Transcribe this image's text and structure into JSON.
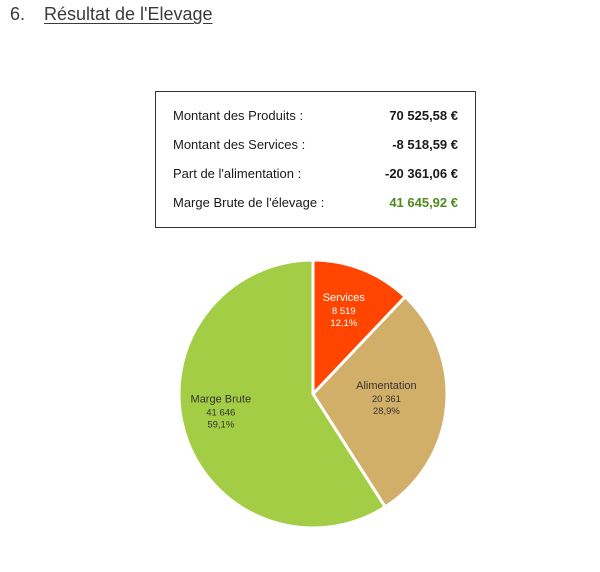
{
  "heading": {
    "number": "6.",
    "title": "Résultat de l'Elevage"
  },
  "summary": {
    "rows": [
      {
        "label": "Montant des Produits :",
        "value": "70 525,58 €"
      },
      {
        "label": "Montant des Services :",
        "value": "-8 518,59 €"
      },
      {
        "label": "Part de l'alimentation :",
        "value": "-20 361,06 €"
      },
      {
        "label": "Marge Brute de l'élevage :",
        "value": "41 645,92 €"
      }
    ],
    "accent_color": "#4f8a1e"
  },
  "chart_data": {
    "type": "pie",
    "title": "",
    "start_angle_deg": 0,
    "direction": "clockwise",
    "slices": [
      {
        "label": "Services",
        "value": 8519,
        "value_text": "8 519",
        "percent_text": "12,1%",
        "color": "#ff4500",
        "text_color": "#ffffff"
      },
      {
        "label": "Alimentation",
        "value": 20361,
        "value_text": "20 361",
        "percent_text": "28,9%",
        "color": "#d2af68",
        "text_color": "#333333"
      },
      {
        "label": "Marge Brute",
        "value": 41646,
        "value_text": "41 646",
        "percent_text": "59,1%",
        "color": "#a4cd46",
        "text_color": "#333333"
      }
    ]
  }
}
